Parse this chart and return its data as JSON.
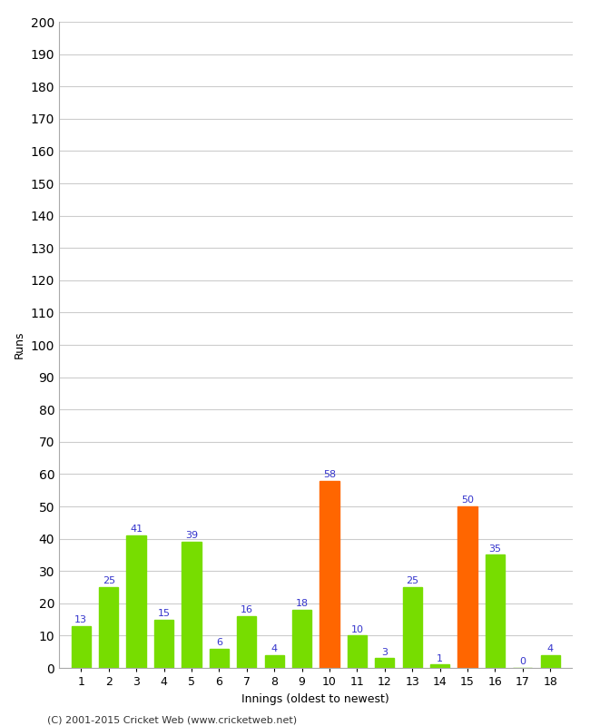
{
  "innings": [
    1,
    2,
    3,
    4,
    5,
    6,
    7,
    8,
    9,
    10,
    11,
    12,
    13,
    14,
    15,
    16,
    17,
    18
  ],
  "values": [
    13,
    25,
    41,
    15,
    39,
    6,
    16,
    4,
    18,
    58,
    10,
    3,
    25,
    1,
    50,
    35,
    0,
    4
  ],
  "bar_colors": [
    "#77dd00",
    "#77dd00",
    "#77dd00",
    "#77dd00",
    "#77dd00",
    "#77dd00",
    "#77dd00",
    "#77dd00",
    "#77dd00",
    "#ff6600",
    "#77dd00",
    "#77dd00",
    "#77dd00",
    "#77dd00",
    "#ff6600",
    "#77dd00",
    "#77dd00",
    "#77dd00"
  ],
  "xlabel": "Innings (oldest to newest)",
  "ylabel": "Runs",
  "ylim": [
    0,
    200
  ],
  "ytick_step": 10,
  "background_color": "#ffffff",
  "grid_color": "#cccccc",
  "label_color": "#3333cc",
  "footer": "(C) 2001-2015 Cricket Web (www.cricketweb.net)"
}
